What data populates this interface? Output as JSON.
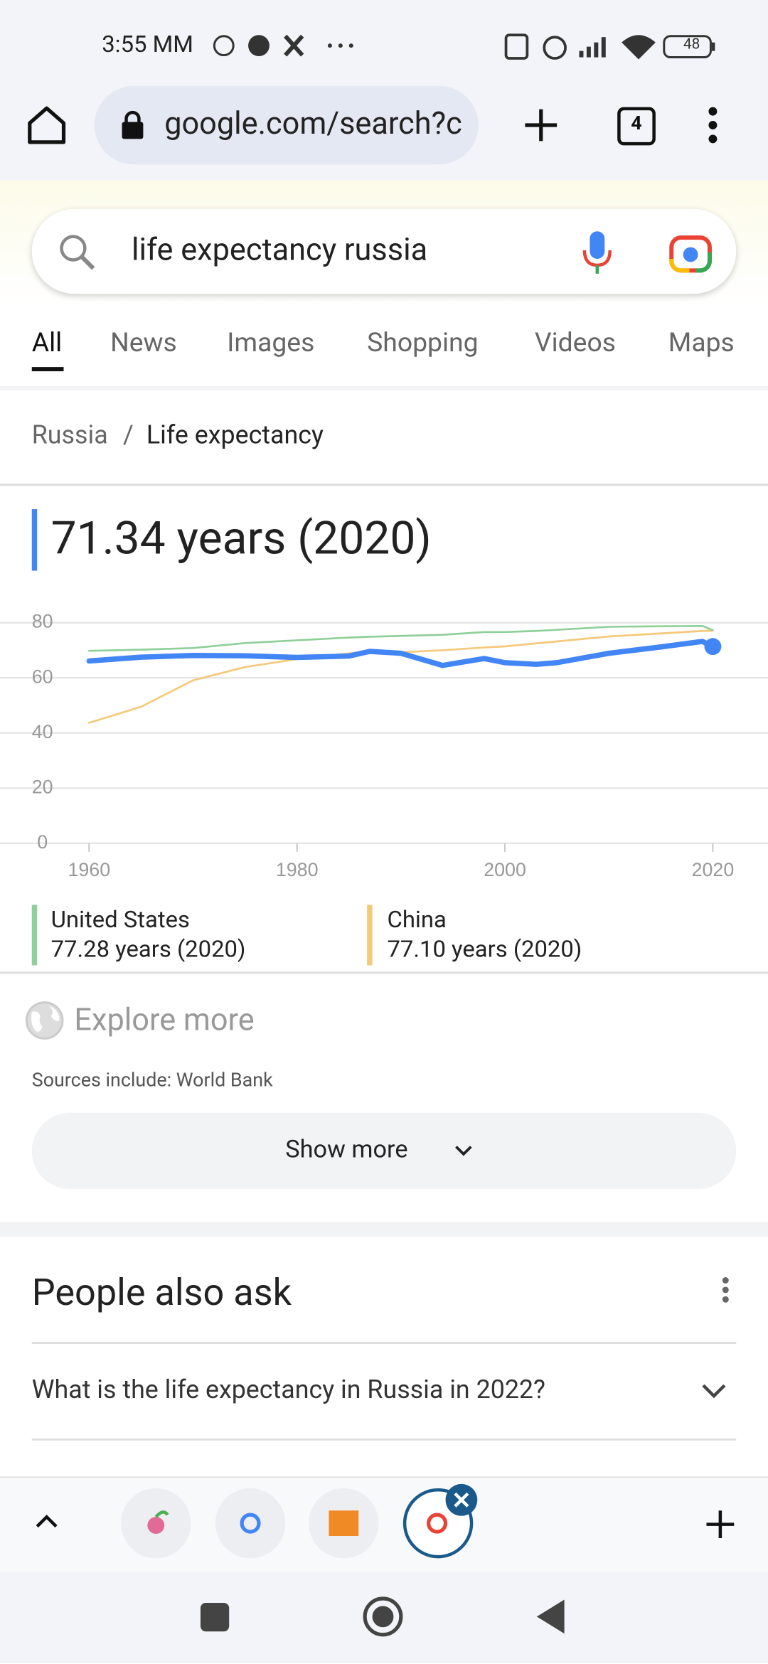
{
  "status_bar": {
    "time": "3:55 MM",
    "battery": "48"
  },
  "toolbar": {
    "url": "google.com/search?c",
    "tab_count": "4"
  },
  "search": {
    "query": "life expectancy russia",
    "tabs": [
      "All",
      "News",
      "Images",
      "Shopping",
      "Videos",
      "Maps"
    ]
  },
  "breadcrumb": [
    "Russia",
    "Life expectancy"
  ],
  "headline": "71.34 years (2020)",
  "chart_data": {
    "type": "line",
    "x": [
      1960,
      1965,
      1970,
      1975,
      1980,
      1985,
      1987,
      1990,
      1994,
      1998,
      2000,
      2003,
      2005,
      2010,
      2015,
      2019,
      2020
    ],
    "series": [
      {
        "color": "#4285f4",
        "values": [
          66.1,
          67.5,
          68.1,
          68.0,
          67.4,
          67.9,
          69.6,
          68.9,
          64.5,
          67.0,
          65.5,
          64.9,
          65.5,
          68.9,
          71.2,
          73.2,
          71.34
        ]
      },
      {
        "name": "United States",
        "color": "#8fcf9a",
        "latest_label": "77.28 years (2020)",
        "values": [
          69.8,
          70.2,
          70.8,
          72.6,
          73.6,
          74.6,
          74.9,
          75.2,
          75.6,
          76.6,
          76.6,
          77.0,
          77.4,
          78.5,
          78.7,
          78.8,
          77.28
        ]
      },
      {
        "name": "China",
        "color": "#f4c97a",
        "latest_label": "77.10 years (2020)",
        "values": [
          43.7,
          49.5,
          59.1,
          63.9,
          66.8,
          68.9,
          69.2,
          69.3,
          70.0,
          71.0,
          71.4,
          72.5,
          73.2,
          75.0,
          76.1,
          77.0,
          77.1
        ]
      }
    ],
    "xlim": [
      1960,
      2020
    ],
    "xticks": [
      1960,
      1980,
      2000,
      2020
    ],
    "ylim": [
      0,
      80
    ],
    "yticks": [
      0,
      20,
      40,
      60,
      80
    ],
    "grid": true
  },
  "explore": {
    "title": "Explore more",
    "sources": "Sources include: World Bank",
    "button": "Show more"
  },
  "people_also_ask": {
    "title": "People also ask",
    "questions": [
      "What is the life expectancy in Russia in 2022?"
    ]
  }
}
